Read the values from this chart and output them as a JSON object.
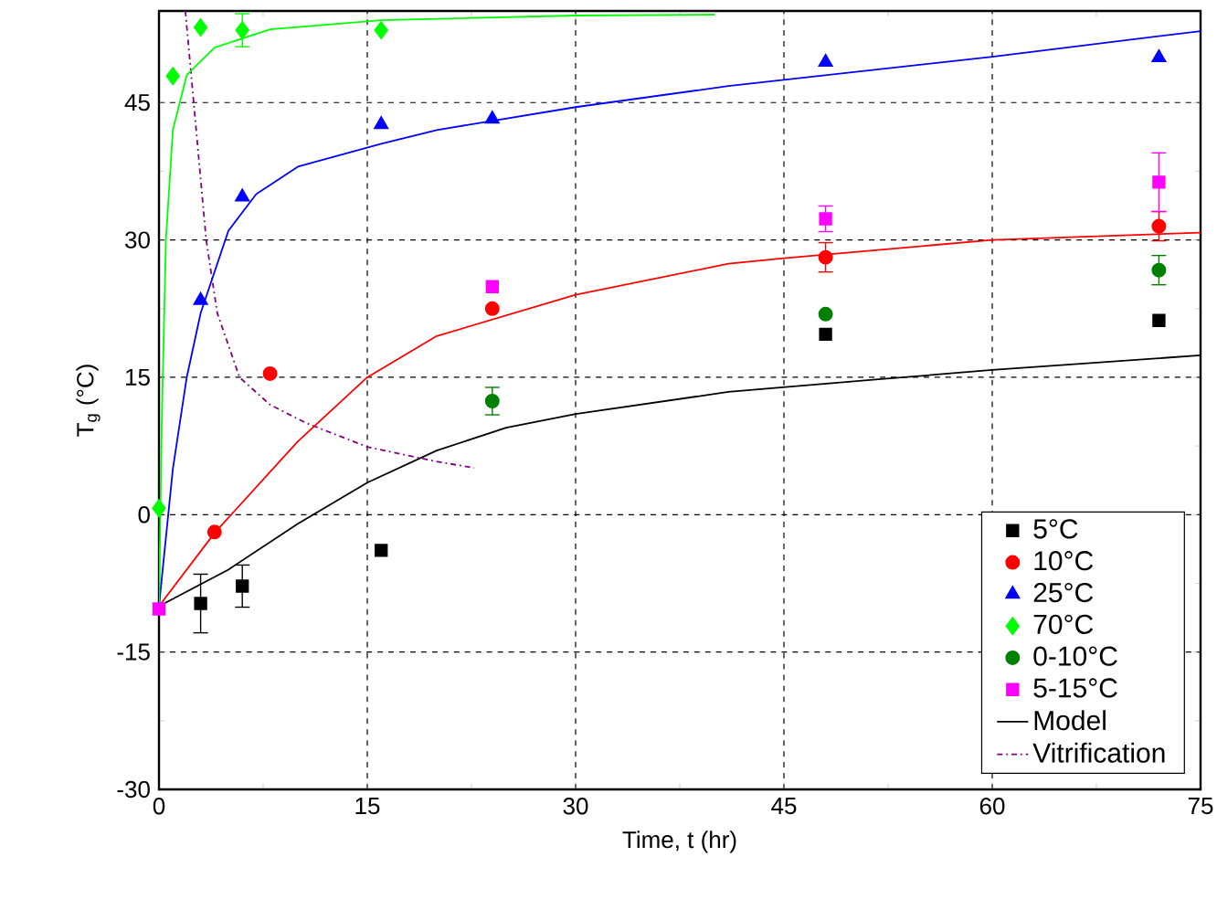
{
  "chart_data": {
    "type": "scatter",
    "xlabel": "Time, t (hr)",
    "ylabel": "T$_{g}$ (°C)",
    "xlim": [
      0,
      75
    ],
    "ylim": [
      -30,
      55
    ],
    "xticks": [
      0,
      15,
      30,
      45,
      60,
      75
    ],
    "yticks": [
      -30,
      -15,
      0,
      15,
      30,
      45
    ],
    "grid": true,
    "legend": "bottom right",
    "series": [
      {
        "name": "5°C",
        "marker": "square",
        "color": "#000000",
        "x": [
          3,
          6,
          16,
          48,
          72
        ],
        "values": [
          -9.7,
          -7.8,
          -3.9,
          19.7,
          21.2
        ],
        "errors": [
          3.2,
          2.3,
          null,
          null,
          null
        ]
      },
      {
        "name": "10°C",
        "marker": "circle",
        "color": "#ff0000",
        "x": [
          4,
          8,
          24,
          48,
          72
        ],
        "values": [
          -1.9,
          15.4,
          22.5,
          28.1,
          31.5
        ],
        "errors": [
          null,
          null,
          null,
          1.6,
          1.6
        ]
      },
      {
        "name": "25°C",
        "marker": "triangle",
        "color": "#0000ff",
        "x": [
          3,
          6,
          16,
          24,
          48,
          72
        ],
        "values": [
          23.4,
          34.7,
          42.6,
          43.2,
          49.4,
          49.9
        ],
        "errors": [
          null,
          null,
          null,
          null,
          null,
          null
        ]
      },
      {
        "name": "70°C",
        "marker": "diamond",
        "color": "#00ff00",
        "x": [
          0,
          1,
          3,
          6,
          16
        ],
        "values": [
          0.7,
          47.9,
          53.2,
          52.9,
          52.9
        ],
        "errors": [
          null,
          null,
          null,
          1.8,
          null
        ]
      },
      {
        "name": "0-10°C",
        "marker": "circle",
        "color": "#008000",
        "x": [
          24,
          48,
          72
        ],
        "values": [
          12.4,
          21.9,
          26.7
        ],
        "errors": [
          1.5,
          null,
          1.6
        ]
      },
      {
        "name": "5-15°C",
        "marker": "square",
        "color": "#ff00ff",
        "x": [
          0,
          24,
          48,
          72
        ],
        "values": [
          -10.3,
          24.9,
          32.3,
          36.3
        ],
        "errors": [
          null,
          null,
          1.4,
          3.2
        ]
      },
      {
        "name": "Model",
        "type": "line",
        "marker": "none",
        "color": "#000000",
        "x": [
          0,
          5,
          10,
          15,
          20,
          25,
          30,
          41,
          52,
          60,
          75
        ],
        "values": [
          -10,
          -6,
          -1,
          3.5,
          7,
          9.5,
          11,
          13.4,
          14.8,
          15.8,
          17.4
        ]
      },
      {
        "name": "Vitrification",
        "type": "line",
        "marker": "none",
        "line_style": "dashdot",
        "color": "#800080",
        "x": [
          1.9,
          2.5,
          3.4,
          4.2,
          5.8,
          8,
          10.6,
          15,
          20,
          22.7
        ],
        "values": [
          55,
          45,
          30,
          22,
          15,
          12,
          10,
          7.4,
          5.8,
          5.1
        ]
      },
      {
        "type": "line",
        "marker": "none",
        "color": "#ff0000",
        "x": [
          0,
          4,
          10,
          15,
          20,
          30,
          41,
          45,
          60,
          75
        ],
        "values": [
          -10,
          -2,
          8,
          15,
          19.5,
          24,
          27.4,
          28,
          30,
          30.8
        ]
      },
      {
        "type": "line",
        "marker": "none",
        "color": "#0000ff",
        "x": [
          0,
          1,
          2,
          3,
          5,
          7,
          10,
          16,
          20,
          30,
          41,
          60,
          75
        ],
        "values": [
          -10,
          5,
          15,
          22,
          31,
          35,
          38,
          40.5,
          42,
          44.5,
          46.8,
          50,
          52.8
        ]
      },
      {
        "type": "line",
        "marker": "none",
        "color": "#00ff00",
        "x": [
          0,
          0.2,
          0.5,
          1,
          2,
          4,
          8,
          16,
          30,
          40
        ],
        "values": [
          -10,
          10,
          30,
          42,
          48,
          51,
          53,
          54,
          54.5,
          54.6
        ]
      }
    ]
  }
}
